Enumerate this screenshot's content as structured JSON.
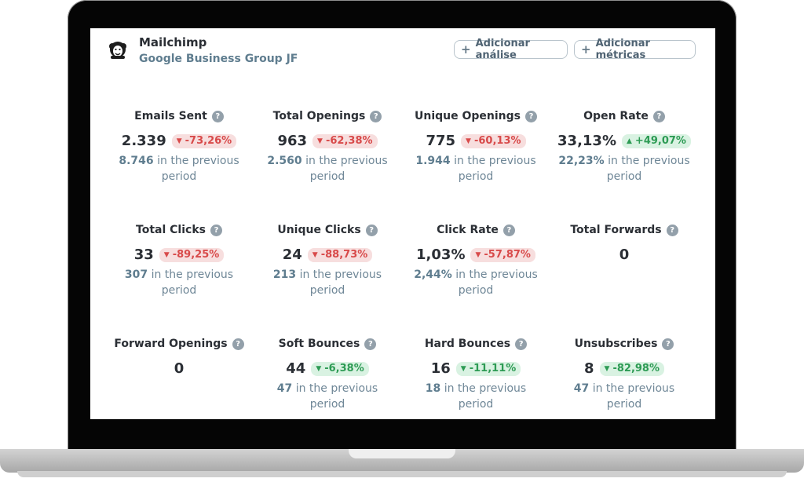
{
  "app": {
    "title": "Mailchimp",
    "subtitle": "Google Business Group JF",
    "logo_icon": "mailchimp-monkey-logo"
  },
  "actions": {
    "add_analysis": "Adicionar análise",
    "add_metrics": "Adicionar métricas"
  },
  "colors": {
    "negative_bg": "#f7dede",
    "negative_text": "#d84a4a",
    "positive_bg": "#d9f2e2",
    "positive_text": "#2d9b54",
    "muted_text": "#6f8797"
  },
  "metrics": [
    {
      "title": "Emails Sent",
      "value": "2.339",
      "change": "-73,26%",
      "trend": "down",
      "tone": "negative",
      "previous_value": "8.746",
      "previous_suffix": "in the previous",
      "previous_period": "period"
    },
    {
      "title": "Total Openings",
      "value": "963",
      "change": "-62,38%",
      "trend": "down",
      "tone": "negative",
      "previous_value": "2.560",
      "previous_suffix": "in the previous",
      "previous_period": "period"
    },
    {
      "title": "Unique Openings",
      "value": "775",
      "change": "-60,13%",
      "trend": "down",
      "tone": "negative",
      "previous_value": "1.944",
      "previous_suffix": "in the previous",
      "previous_period": "period"
    },
    {
      "title": "Open Rate",
      "value": "33,13%",
      "change": "+49,07%",
      "trend": "up",
      "tone": "positive",
      "previous_value": "22,23%",
      "previous_suffix": "in the previous",
      "previous_period": "period"
    },
    {
      "title": "Total Clicks",
      "value": "33",
      "change": "-89,25%",
      "trend": "down",
      "tone": "negative",
      "previous_value": "307",
      "previous_suffix": "in the previous",
      "previous_period": "period"
    },
    {
      "title": "Unique Clicks",
      "value": "24",
      "change": "-88,73%",
      "trend": "down",
      "tone": "negative",
      "previous_value": "213",
      "previous_suffix": "in the previous",
      "previous_period": "period"
    },
    {
      "title": "Click Rate",
      "value": "1,03%",
      "change": "-57,87%",
      "trend": "down",
      "tone": "negative",
      "previous_value": "2,44%",
      "previous_suffix": "in the previous",
      "previous_period": "period"
    },
    {
      "title": "Total Forwards",
      "value": "0",
      "change": "",
      "trend": "",
      "tone": "",
      "previous_value": "",
      "previous_suffix": "",
      "previous_period": ""
    },
    {
      "title": "Forward Openings",
      "value": "0",
      "change": "",
      "trend": "",
      "tone": "",
      "previous_value": "",
      "previous_suffix": "",
      "previous_period": ""
    },
    {
      "title": "Soft Bounces",
      "value": "44",
      "change": "-6,38%",
      "trend": "down",
      "tone": "positive",
      "previous_value": "47",
      "previous_suffix": "in the previous",
      "previous_period": "period"
    },
    {
      "title": "Hard Bounces",
      "value": "16",
      "change": "-11,11%",
      "trend": "down",
      "tone": "positive",
      "previous_value": "18",
      "previous_suffix": "in the previous",
      "previous_period": "period"
    },
    {
      "title": "Unsubscribes",
      "value": "8",
      "change": "-82,98%",
      "trend": "down",
      "tone": "positive",
      "previous_value": "47",
      "previous_suffix": "in the previous",
      "previous_period": "period"
    }
  ]
}
